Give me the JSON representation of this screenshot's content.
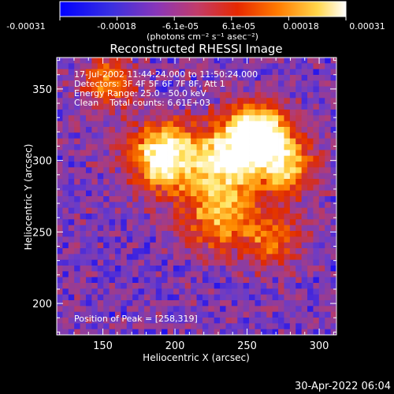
{
  "colorbar": {
    "ticks": [
      "-0.00031",
      "-0.00018",
      "-6.1e-05",
      "6.1e-05",
      "0.00018",
      "0.00031"
    ],
    "unit_label": "(photons cm⁻² s⁻¹ asec⁻²)"
  },
  "chart_data": {
    "type": "heatmap",
    "title": "Reconstructed RHESSI Image",
    "xlabel": "Heliocentric X (arcsec)",
    "ylabel": "Heliocentric Y (arcsec)",
    "xlim": [
      118,
      312
    ],
    "ylim": [
      178,
      372
    ],
    "x_ticks": [
      150,
      200,
      250,
      300
    ],
    "y_ticks": [
      200,
      250,
      300,
      350
    ],
    "value_range": [
      -0.00031,
      0.00031
    ],
    "grid": false,
    "colormap_colors": [
      "#0000ff",
      "#6a3cc8",
      "#b03c78",
      "#e02a00",
      "#ff8a00",
      "#ffe25a",
      "#ffffff"
    ],
    "sources": [
      {
        "x": 258,
        "y": 319,
        "sigma": 14,
        "amp": 1.0
      },
      {
        "x": 192,
        "y": 302,
        "sigma": 16,
        "amp": 0.95
      },
      {
        "x": 236,
        "y": 301,
        "sigma": 18,
        "amp": 0.75
      },
      {
        "x": 278,
        "y": 296,
        "sigma": 14,
        "amp": 0.65
      },
      {
        "x": 230,
        "y": 262,
        "sigma": 18,
        "amp": 0.55
      },
      {
        "x": 155,
        "y": 355,
        "sigma": 12,
        "amp": 0.55
      },
      {
        "x": 268,
        "y": 245,
        "sigma": 14,
        "amp": 0.45
      }
    ],
    "annotations": {
      "time_range": "17-Jul-2002 11:44:24.000 to 11:50:24.000",
      "detectors": "Detectors: 3F 4F 5F 6F 7F 8F, Att 1",
      "energy_range": "Energy Range: 25.0 - 50.0 keV",
      "method_counts": "Clean    Total counts: 6.61E+03",
      "peak_position": "Position of Peak = [258,319]"
    }
  },
  "footer": {
    "date": "30-Apr-2022 06:04"
  }
}
